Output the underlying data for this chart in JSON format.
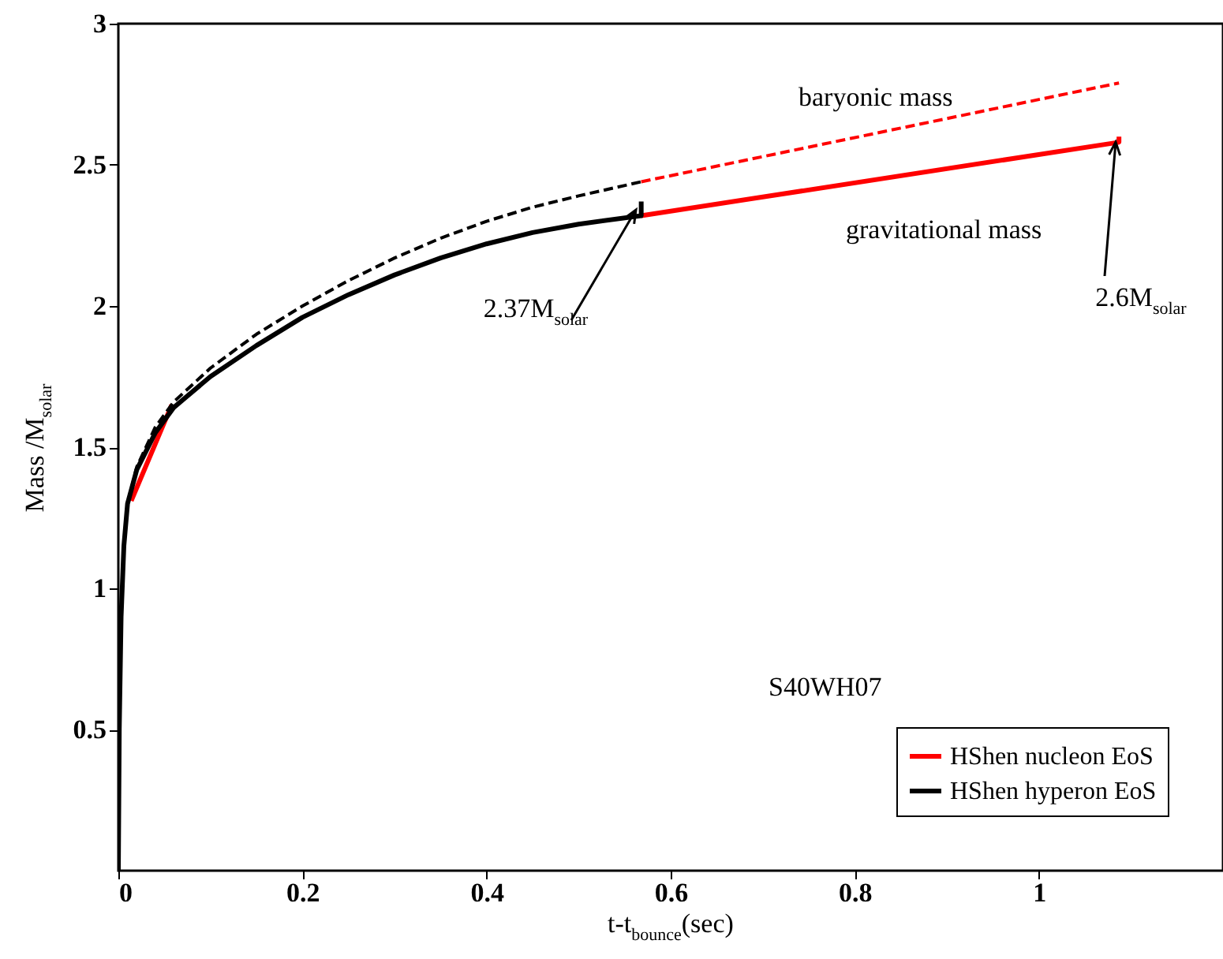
{
  "chart_data": {
    "type": "line",
    "xlabel": "t-t$_{bounce}$(sec)",
    "ylabel": "Mass /M$_{solar}$",
    "xlim": [
      0,
      1.2
    ],
    "xticks": [
      0,
      0.2,
      0.4,
      0.6,
      0.8,
      1
    ],
    "ylim": [
      0,
      3
    ],
    "yticks": [
      0.5,
      1,
      1.5,
      2,
      2.5,
      3
    ],
    "grid": false,
    "legend": "bottom right",
    "marker": "none",
    "annotations": [
      "baryonic mass",
      "gravitational mass",
      {
        "text": "2.37M$_{solar}$",
        "x": 0.568,
        "y": 2.37
      },
      {
        "text": "2.6M$_{solar}$",
        "x": 1.087,
        "y": 2.6
      },
      "S40WH07"
    ],
    "series": [
      {
        "color": "#ff0000",
        "line_style": "dashed",
        "x": [
          0.568,
          1.087
        ],
        "values": [
          2.44,
          2.79
        ]
      },
      {
        "name": "HShen nucleon EoS",
        "color": "#ff0000",
        "line_style": "solid",
        "x": [
          0.014,
          0.058,
          0.1,
          0.568,
          1.087,
          1.087
        ],
        "values": [
          1.31,
          1.65,
          null,
          2.32,
          2.58,
          2.6
        ]
      },
      {
        "color": "#000000",
        "line_style": "dashed",
        "x": [
          0,
          0.001,
          0.003,
          0.006,
          0.01,
          0.02,
          0.04,
          0.06,
          0.1,
          0.15,
          0.2,
          0.25,
          0.3,
          0.35,
          0.4,
          0.45,
          0.5,
          0.568
        ],
        "values": [
          0,
          0.5,
          0.9,
          1.15,
          1.3,
          1.43,
          1.57,
          1.66,
          1.78,
          1.9,
          2.0,
          2.09,
          2.17,
          2.24,
          2.3,
          2.35,
          2.39,
          2.44
        ]
      },
      {
        "name": "HShen hyperon EoS",
        "color": "#000000",
        "line_style": "solid",
        "x": [
          0,
          0.001,
          0.003,
          0.006,
          0.01,
          0.02,
          0.04,
          0.06,
          0.1,
          0.15,
          0.2,
          0.25,
          0.3,
          0.35,
          0.4,
          0.45,
          0.5,
          0.568,
          0.568
        ],
        "values": [
          0,
          0.5,
          0.9,
          1.15,
          1.3,
          1.42,
          1.55,
          1.64,
          1.75,
          1.86,
          1.96,
          2.04,
          2.11,
          2.17,
          2.22,
          2.26,
          2.29,
          2.32,
          2.37
        ]
      }
    ]
  }
}
